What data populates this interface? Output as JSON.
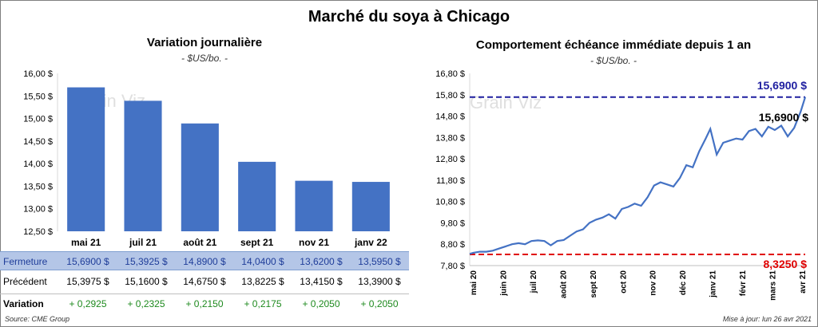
{
  "title": "Marché du soya à Chicago",
  "bar_chart": {
    "subtitle": "Variation journalière",
    "unit": "- $US/bo. -",
    "watermark": "Grain Viz"
  },
  "line_chart": {
    "subtitle": "Comportement échéance immédiate depuis 1 an",
    "unit": "- $US/bo. -",
    "watermark": "Grain Viz",
    "max_label": "15,6900 $",
    "current_label": "15,6900 $",
    "min_label": "8,3250 $"
  },
  "table": {
    "label_fermeture": "Fermeture",
    "label_precedent": "Précédent",
    "label_variation": "Variation",
    "fermeture": [
      "15,6900 $",
      "15,3925 $",
      "14,8900 $",
      "14,0400 $",
      "13,6200 $",
      "13,5950 $"
    ],
    "precedent": [
      "15,3975 $",
      "15,1600 $",
      "14,6750 $",
      "13,8225 $",
      "13,4150 $",
      "13,3900 $"
    ],
    "variation": [
      "+ 0,2925",
      "+ 0,2325",
      "+ 0,2150",
      "+ 0,2175",
      "+ 0,2050",
      "+ 0,2050"
    ]
  },
  "footer": {
    "source": "Source: CME Group",
    "updated": "Mise à jour: lun 26 avr 2021"
  },
  "colors": {
    "bar": "#4472c4",
    "line": "#4472c4",
    "max_line": "#1f1fa0",
    "min_line": "#e00000"
  },
  "chart_data": [
    {
      "type": "bar",
      "title": "Variation journalière",
      "categories": [
        "mai 21",
        "juil 21",
        "août 21",
        "sept 21",
        "nov 21",
        "janv 22"
      ],
      "values": [
        15.69,
        15.3925,
        14.89,
        14.04,
        13.62,
        13.595
      ],
      "ylim": [
        12.5,
        16.0
      ],
      "yticks": [
        "16,00 $",
        "15,50 $",
        "15,00 $",
        "14,50 $",
        "14,00 $",
        "13,50 $",
        "13,00 $",
        "12,50 $"
      ],
      "grid": false
    },
    {
      "type": "line",
      "title": "Comportement échéance immédiate depuis 1 an",
      "ylim": [
        7.8,
        16.8
      ],
      "yticks": [
        "16,80 $",
        "15,80 $",
        "14,80 $",
        "13,80 $",
        "12,80 $",
        "11,80 $",
        "10,80 $",
        "9,80 $",
        "8,80 $",
        "7,80 $"
      ],
      "xticks": [
        "mai 20",
        "juin 20",
        "juil 20",
        "août 20",
        "sept 20",
        "oct 20",
        "nov 20",
        "déc 20",
        "janv 21",
        "févr 21",
        "mars 21",
        "avr 21"
      ],
      "x_start": "2020-04-27",
      "x_end": "2021-04-26",
      "max_value": 15.69,
      "min_value": 8.325,
      "series": [
        {
          "x": [
            "2020-04-27",
            "2020-05-01",
            "2020-05-08",
            "2020-05-15",
            "2020-05-22",
            "2020-05-29",
            "2020-06-05",
            "2020-06-12",
            "2020-06-19",
            "2020-06-26",
            "2020-07-03",
            "2020-07-10",
            "2020-07-17",
            "2020-07-24",
            "2020-07-31",
            "2020-08-07",
            "2020-08-14",
            "2020-08-21",
            "2020-08-28",
            "2020-09-04",
            "2020-09-11",
            "2020-09-18",
            "2020-09-25",
            "2020-10-02",
            "2020-10-09",
            "2020-10-16",
            "2020-10-23",
            "2020-10-30",
            "2020-11-06",
            "2020-11-13",
            "2020-11-20",
            "2020-11-27",
            "2020-12-04",
            "2020-12-11",
            "2020-12-18",
            "2020-12-25",
            "2021-01-01",
            "2021-01-08",
            "2021-01-13",
            "2021-01-20",
            "2021-01-27",
            "2021-02-03",
            "2021-02-10",
            "2021-02-17",
            "2021-02-24",
            "2021-03-03",
            "2021-03-10",
            "2021-03-17",
            "2021-03-24",
            "2021-03-31",
            "2021-04-07",
            "2021-04-14",
            "2021-04-21",
            "2021-04-26"
          ],
          "y": [
            8.35,
            8.4,
            8.45,
            8.45,
            8.5,
            8.6,
            8.7,
            8.8,
            8.85,
            8.8,
            8.95,
            8.98,
            8.95,
            8.75,
            8.95,
            9.0,
            9.2,
            9.4,
            9.5,
            9.8,
            9.95,
            10.05,
            10.2,
            10.0,
            10.45,
            10.55,
            10.7,
            10.6,
            11.0,
            11.55,
            11.7,
            11.6,
            11.5,
            11.9,
            12.5,
            12.4,
            13.15,
            13.75,
            14.2,
            13.0,
            13.55,
            13.65,
            13.75,
            13.7,
            14.1,
            14.2,
            13.85,
            14.3,
            14.15,
            14.35,
            13.85,
            14.25,
            15.0,
            15.69
          ]
        }
      ]
    }
  ]
}
